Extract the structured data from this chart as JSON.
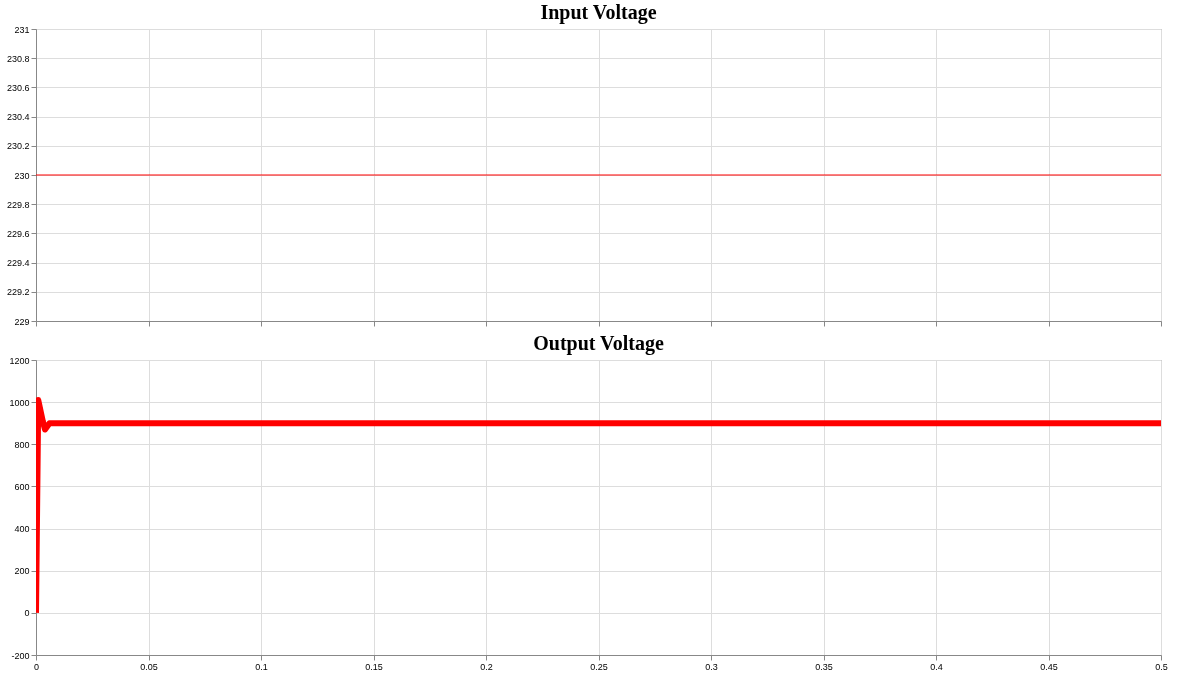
{
  "chart_data": [
    {
      "type": "line",
      "title": "Input Voltage",
      "x": [
        0,
        0.5
      ],
      "series": [
        {
          "color": "#ff0000",
          "values": [
            230,
            230
          ]
        }
      ],
      "xlim": [
        0,
        0.5
      ],
      "xticks": [
        0,
        0.05,
        0.1,
        0.15,
        0.2,
        0.25,
        0.3,
        0.35,
        0.4,
        0.45,
        0.5
      ],
      "ylim": [
        229,
        231
      ],
      "yticks": [
        229,
        229.2,
        229.4,
        229.6,
        229.8,
        230,
        230.2,
        230.4,
        230.6,
        230.8,
        231
      ],
      "grid": true,
      "tick_labels": "y"
    },
    {
      "type": "line",
      "title": "Output Voltage",
      "x": [
        0,
        0.0005,
        0.001,
        0.002,
        0.003,
        0.004,
        0.006,
        0.5
      ],
      "series": [
        {
          "color": "#ff0000",
          "values": [
            0,
            500,
            1010,
            960,
            910,
            870,
            900,
            900
          ]
        }
      ],
      "xlim": [
        0,
        0.5
      ],
      "xticks": [
        0,
        0.05,
        0.1,
        0.15,
        0.2,
        0.25,
        0.3,
        0.35,
        0.4,
        0.45,
        0.5
      ],
      "ylim": [
        -200,
        1200
      ],
      "yticks": [
        -200,
        0,
        200,
        400,
        600,
        800,
        1000,
        1200
      ],
      "grid": true
    }
  ]
}
